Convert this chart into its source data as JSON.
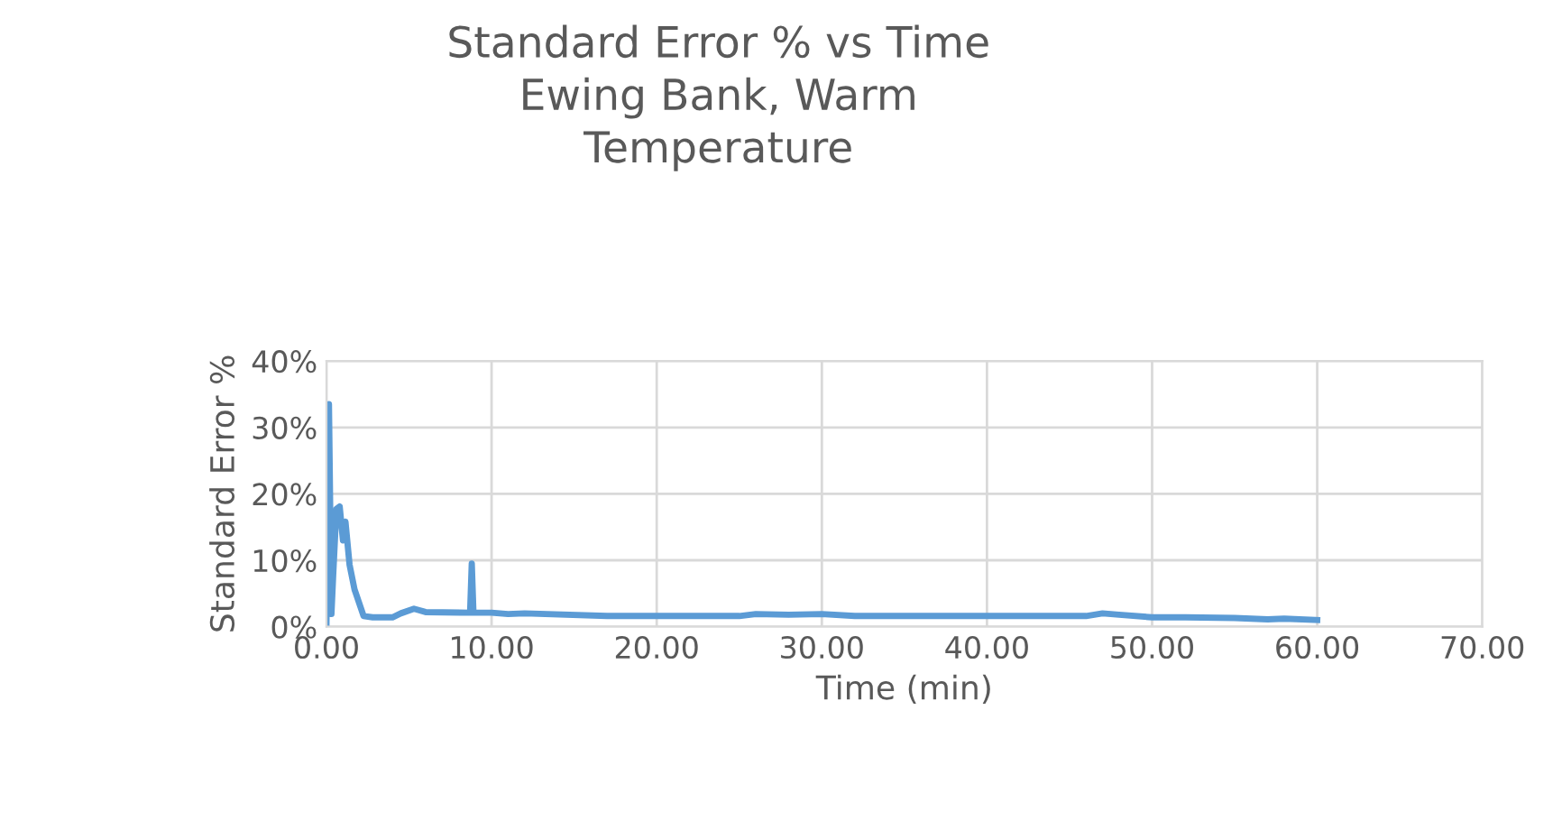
{
  "chart_data": {
    "type": "line",
    "title": "Standard Error % vs Time\nEwing Bank, Warm\nTemperature",
    "xlabel": "Time (min)",
    "ylabel": "Standard Error %",
    "xlim": [
      0,
      70
    ],
    "xticks": [
      {
        "value": 0,
        "label": "0.00"
      },
      {
        "value": 10,
        "label": "10.00"
      },
      {
        "value": 20,
        "label": "20.00"
      },
      {
        "value": 30,
        "label": "30.00"
      },
      {
        "value": 40,
        "label": "40.00"
      },
      {
        "value": 50,
        "label": "50.00"
      },
      {
        "value": 60,
        "label": "60.00"
      },
      {
        "value": 70,
        "label": "70.00"
      }
    ],
    "ylim": [
      0,
      40
    ],
    "yticks": [
      {
        "value": 0,
        "label": "0%"
      },
      {
        "value": 10,
        "label": "10%"
      },
      {
        "value": 20,
        "label": "20%"
      },
      {
        "value": 30,
        "label": "30%"
      },
      {
        "value": 40,
        "label": "40%"
      }
    ],
    "grid": true,
    "marker": "none",
    "line_style": "solid",
    "series": [
      {
        "color": "#5b9bd5",
        "x": [
          0,
          0.15,
          0.3,
          0.4,
          0.6,
          0.8,
          1.0,
          1.15,
          1.4,
          1.7,
          2.25,
          2.8,
          4.0,
          4.5,
          5.3,
          6.0,
          8.7,
          8.8,
          8.9,
          10,
          11,
          12,
          17,
          25,
          26,
          28,
          30,
          32,
          35,
          42,
          46,
          47,
          48,
          50,
          52,
          55,
          57,
          58,
          60
        ],
        "values": [
          0.5,
          33.5,
          1.9,
          7.4,
          17.7,
          18.1,
          13,
          15.8,
          9.3,
          5.6,
          1.6,
          1.4,
          1.4,
          2,
          2.7,
          2.2,
          2.1,
          9.5,
          2.1,
          2.1,
          1.9,
          2,
          1.6,
          1.6,
          1.9,
          1.8,
          1.9,
          1.6,
          1.6,
          1.6,
          1.6,
          2.0,
          1.8,
          1.4,
          1.4,
          1.3,
          1.1,
          1.2,
          1.0
        ]
      }
    ]
  }
}
